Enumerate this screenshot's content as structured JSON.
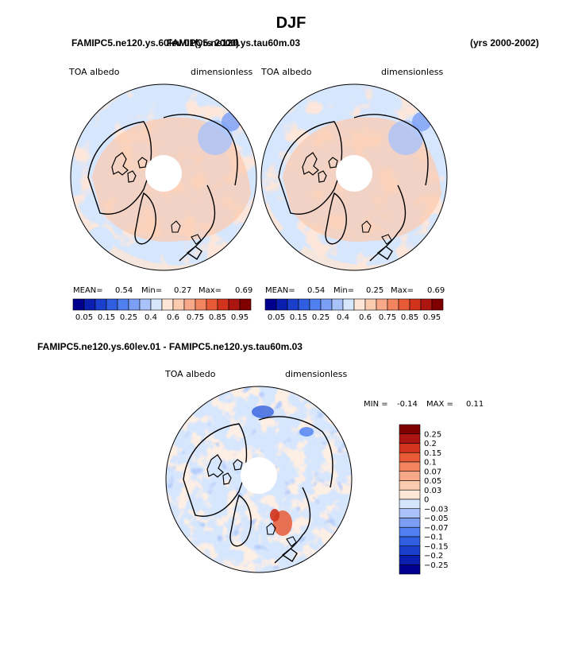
{
  "page": {
    "title": "DJF",
    "case1_label": "FAMIPC5.ne120.ys.60lev.01",
    "case1_years": "(yrs 2000)",
    "case2_label": "FAMIPC5.ne120.ys.tau60m.03",
    "case2_years": "(yrs 2000-2002)"
  },
  "chart_data": [
    {
      "type": "heatmap",
      "projection": "north-polar-stereographic",
      "title_left": "TOA albedo",
      "title_right": "dimensionless",
      "stats": {
        "mean_label": "MEAN=",
        "mean": "0.54",
        "min_label": "Min=",
        "min": "0.27",
        "max_label": "Max=",
        "max": "0.69"
      },
      "colorbar": {
        "orientation": "horizontal",
        "levels": [
          "0.05",
          "0.15",
          "0.25",
          "0.4",
          "0.6",
          "0.75",
          "0.85",
          "0.95"
        ],
        "colors": [
          "#00008f",
          "#0a1fb0",
          "#1a3fcc",
          "#2f5fe0",
          "#4f7ff0",
          "#7a9ff5",
          "#a9c3fa",
          "#d6e6fd",
          "#fde6d6",
          "#fbcbb0",
          "#f7a98a",
          "#f2845f",
          "#e85a36",
          "#d2331c",
          "#ad1510",
          "#800000"
        ]
      }
    },
    {
      "type": "heatmap",
      "projection": "north-polar-stereographic",
      "title_left": "TOA albedo",
      "title_right": "dimensionless",
      "stats": {
        "mean_label": "MEAN=",
        "mean": "0.54",
        "min_label": "Min=",
        "min": "0.25",
        "max_label": "Max=",
        "max": "0.69"
      },
      "colorbar": {
        "orientation": "horizontal",
        "levels": [
          "0.05",
          "0.15",
          "0.25",
          "0.4",
          "0.6",
          "0.75",
          "0.85",
          "0.95"
        ],
        "colors": [
          "#00008f",
          "#0a1fb0",
          "#1a3fcc",
          "#2f5fe0",
          "#4f7ff0",
          "#7a9ff5",
          "#a9c3fa",
          "#d6e6fd",
          "#fde6d6",
          "#fbcbb0",
          "#f7a98a",
          "#f2845f",
          "#e85a36",
          "#d2331c",
          "#ad1510",
          "#800000"
        ]
      }
    },
    {
      "type": "heatmap",
      "projection": "north-polar-stereographic",
      "heading": "FAMIPC5.ne120.ys.60lev.01 - FAMIPC5.ne120.ys.tau60m.03",
      "title_left": "TOA albedo",
      "title_right": "dimensionless",
      "stats": {
        "min_label": "MIN =",
        "min": "-0.14",
        "max_label": "MAX =",
        "max": "0.11"
      },
      "colorbar": {
        "orientation": "vertical",
        "levels": [
          "0.25",
          "0.2",
          "0.15",
          "0.1",
          "0.07",
          "0.05",
          "0.03",
          "0",
          "−0.03",
          "−0.05",
          "−0.07",
          "−0.1",
          "−0.15",
          "−0.2",
          "−0.25"
        ],
        "colors": [
          "#800000",
          "#ad1510",
          "#d2331c",
          "#e85a36",
          "#f2845f",
          "#f7a98a",
          "#fbcbb0",
          "#fde6d6",
          "#d6e6fd",
          "#a9c3fa",
          "#7a9ff5",
          "#4f7ff0",
          "#2f5fe0",
          "#1a3fcc",
          "#0a1fb0",
          "#00008f"
        ]
      }
    }
  ]
}
